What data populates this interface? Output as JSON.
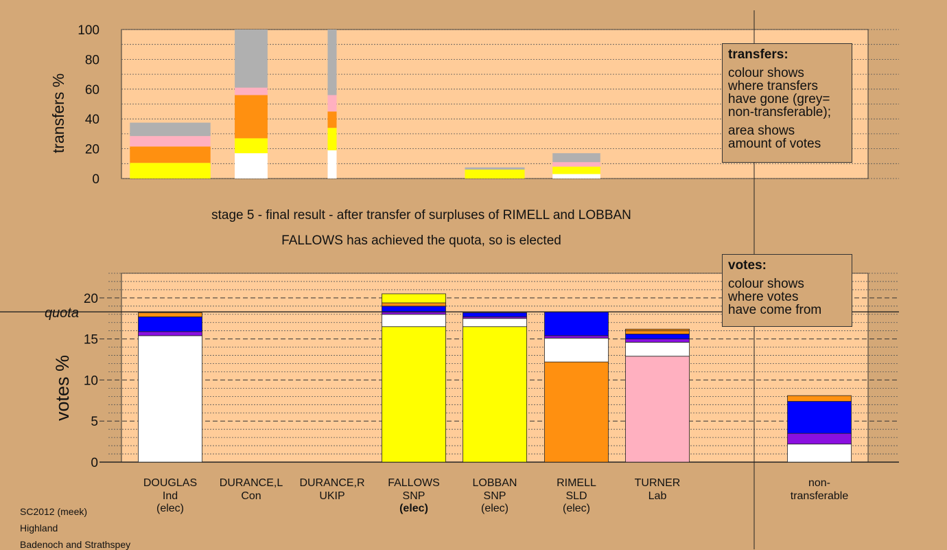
{
  "title_line1": "stage 5 - final result - after transfer of surpluses of RIMELL and LOBBAN",
  "title_line2": "FALLOWS has achieved the quota, so is elected",
  "footer": [
    "SC2012 (meek)",
    "Highland",
    "Badenoch and Strathspey"
  ],
  "legend_transfers": {
    "title": "transfers:",
    "lines_a": [
      "colour shows",
      "where transfers",
      "have gone (grey=",
      "non-transferable);"
    ],
    "lines_b": [
      "area shows",
      "amount of votes"
    ]
  },
  "legend_votes": {
    "title": "votes:",
    "lines": [
      "colour shows",
      "where votes",
      "have come from"
    ]
  },
  "colors": {
    "background": "#d4a877",
    "plot": "#ffcc99",
    "white": "#ffffff",
    "yellow": "#ffff00",
    "orange": "#ff9010",
    "pink": "#ffb0c0",
    "grey": "#b0b0b0",
    "purple": "#8a10e0",
    "blue": "#0000ff"
  },
  "chart_data": [
    {
      "type": "bar",
      "stacked": true,
      "ylabel": "transfers %",
      "ylim": [
        0,
        100
      ],
      "yticks": [
        0,
        20,
        40,
        60,
        80,
        100
      ],
      "grid": true,
      "categories": [
        "DOUGLAS",
        "DURANCE,L",
        "DURANCE,R",
        "FALLOWS",
        "LOBBAN",
        "RIMELL",
        "TURNER"
      ],
      "bar_widths": [
        2.7,
        1.1,
        0.3,
        0,
        2.0,
        1.6,
        0
      ],
      "series": [
        {
          "color": "white",
          "values": [
            0,
            17,
            19,
            0,
            0,
            3,
            0
          ]
        },
        {
          "color": "yellow",
          "values": [
            10.5,
            10,
            15,
            0,
            6,
            5,
            0
          ]
        },
        {
          "color": "orange",
          "values": [
            11,
            29,
            11,
            0,
            0,
            0,
            0
          ]
        },
        {
          "color": "pink",
          "values": [
            7,
            5,
            11,
            0,
            0,
            3,
            0
          ]
        },
        {
          "color": "grey",
          "values": [
            9,
            39,
            44,
            0,
            1.5,
            6,
            0
          ]
        }
      ]
    },
    {
      "type": "bar",
      "stacked": true,
      "ylabel": "votes %",
      "ylim": [
        0,
        23
      ],
      "yticks": [
        0,
        5,
        10,
        15,
        20
      ],
      "quota": 18.3,
      "quota_label": "quota",
      "grid": true,
      "categories": [
        {
          "name": "DOUGLAS",
          "party": "Ind",
          "status": "(elec)",
          "bold": false
        },
        {
          "name": "DURANCE,L",
          "party": "Con",
          "status": "",
          "bold": false
        },
        {
          "name": "DURANCE,R",
          "party": "UKIP",
          "status": "",
          "bold": false
        },
        {
          "name": "FALLOWS",
          "party": "SNP",
          "status": "(elec)",
          "bold": true
        },
        {
          "name": "LOBBAN",
          "party": "SNP",
          "status": "(elec)",
          "bold": false
        },
        {
          "name": "RIMELL",
          "party": "SLD",
          "status": "(elec)",
          "bold": false
        },
        {
          "name": "TURNER",
          "party": "Lab",
          "status": "",
          "bold": false
        },
        {
          "name": "non-",
          "party": "transferable",
          "status": "",
          "bold": false
        }
      ],
      "stacks": [
        [
          [
            "white",
            15.4
          ],
          [
            "purple",
            0.5
          ],
          [
            "blue",
            1.8
          ],
          [
            "orange",
            0.5
          ]
        ],
        [],
        [],
        [
          [
            "yellow",
            16.5
          ],
          [
            "white",
            1.5
          ],
          [
            "purple",
            0.3
          ],
          [
            "blue",
            0.7
          ],
          [
            "orange",
            0.4
          ],
          [
            "yellow",
            1.1
          ]
        ],
        [
          [
            "yellow",
            16.5
          ],
          [
            "white",
            1.0
          ],
          [
            "purple",
            0.2
          ],
          [
            "blue",
            0.5
          ]
        ],
        [
          [
            "orange",
            12.2
          ],
          [
            "white",
            2.9
          ],
          [
            "purple",
            0.3
          ],
          [
            "blue",
            2.9
          ]
        ],
        [
          [
            "pink",
            12.9
          ],
          [
            "white",
            1.7
          ],
          [
            "purple",
            0.4
          ],
          [
            "blue",
            0.6
          ],
          [
            "orange",
            0.4
          ],
          [
            "orange",
            0.2
          ]
        ],
        [
          [
            "white",
            2.2
          ],
          [
            "purple",
            1.3
          ],
          [
            "blue",
            3.9
          ],
          [
            "orange",
            0.7
          ]
        ]
      ]
    }
  ]
}
